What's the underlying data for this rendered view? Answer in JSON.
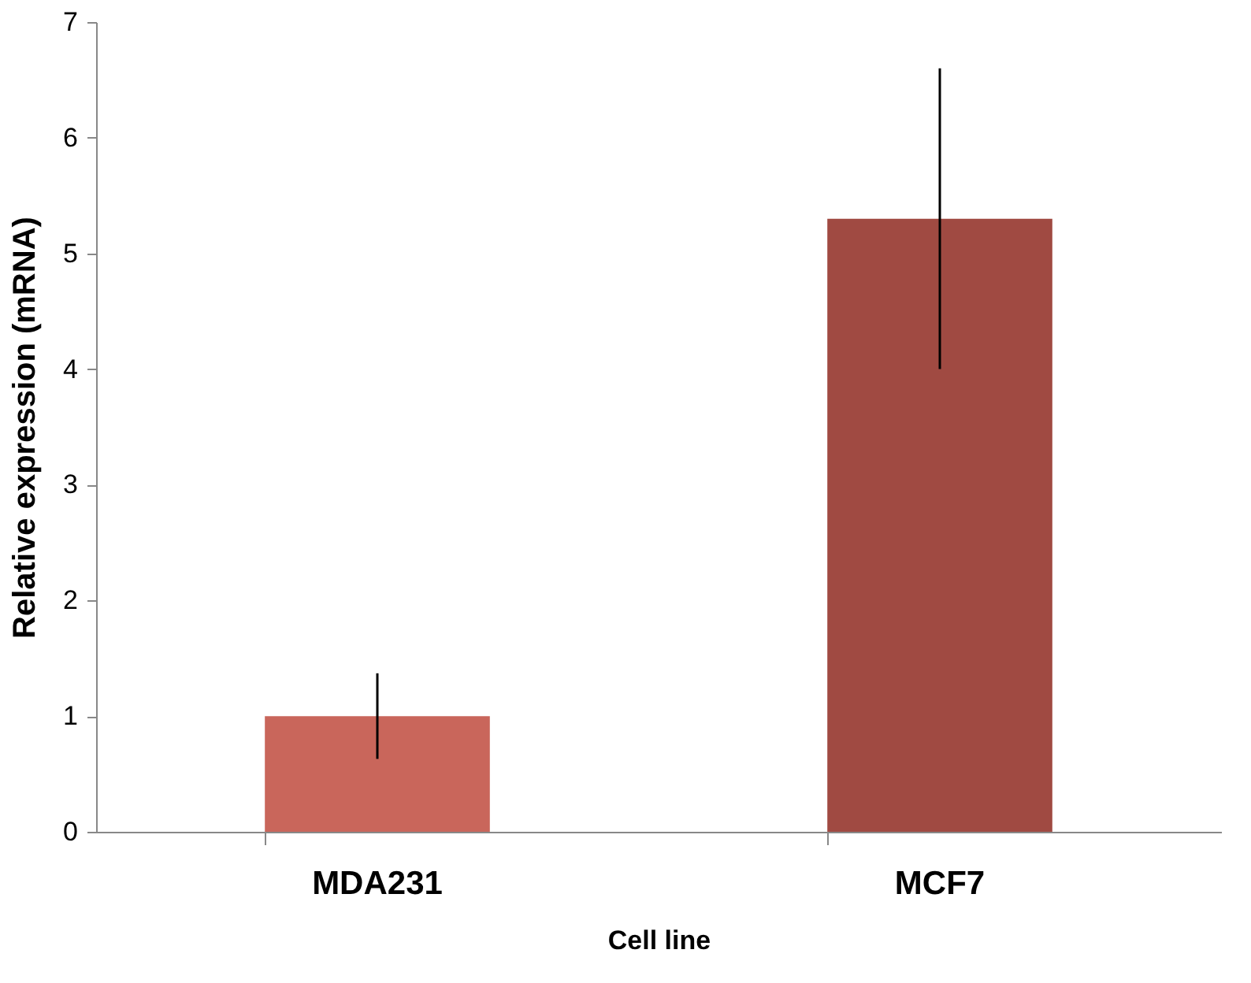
{
  "chart_data": {
    "type": "bar",
    "xlabel": "Cell line",
    "ylabel": "Relative expression (mRNA)",
    "categories": [
      "MDA231",
      "MCF7"
    ],
    "values": [
      1.0,
      5.3
    ],
    "errors": [
      0.37,
      1.3
    ],
    "colors": [
      "#c9665b",
      "#a04a42"
    ],
    "ylim": [
      0,
      7
    ],
    "yticks": [
      0,
      1,
      2,
      3,
      4,
      5,
      6,
      7
    ],
    "grid": false
  }
}
